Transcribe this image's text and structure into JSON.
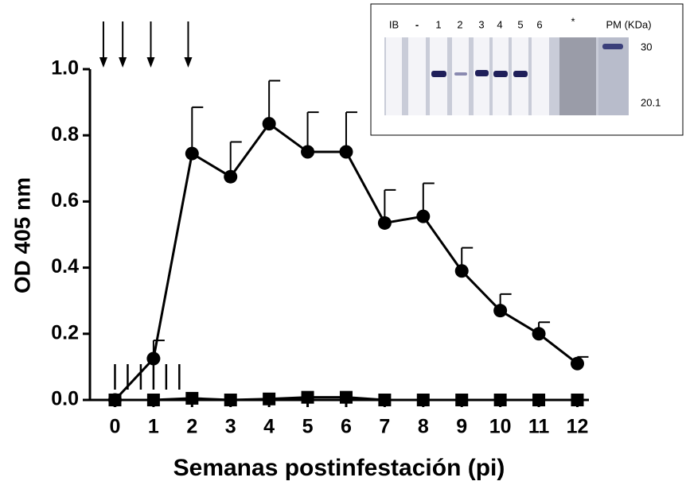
{
  "chart_data": {
    "type": "line",
    "ylabel": "OD 405 nm",
    "xlabel": "Semanas postinfestación (pi)",
    "x": [
      0,
      1,
      2,
      3,
      4,
      5,
      6,
      7,
      8,
      9,
      10,
      11,
      12
    ],
    "xlim": [
      -0.65,
      12.3
    ],
    "xticks": [
      0,
      1,
      2,
      3,
      4,
      5,
      6,
      7,
      8,
      9,
      10,
      11,
      12
    ],
    "ylim": [
      0,
      1.0
    ],
    "yticks": [
      {
        "value": 0,
        "label": "0.0"
      },
      0.2,
      0.4,
      0.6,
      0.8,
      {
        "value": 1.0,
        "label": "1.0"
      }
    ],
    "series": [
      {
        "color": "#000000",
        "marker": "circle",
        "values": [
          0,
          0.125,
          0.745,
          0.675,
          0.835,
          0.75,
          0.75,
          0.535,
          0.555,
          0.39,
          0.27,
          0.2,
          0.11
        ],
        "errors": [
          0,
          0.055,
          0.14,
          0.105,
          0.13,
          0.12,
          0.12,
          0.1,
          0.1,
          0.07,
          0.05,
          0.035,
          0.02
        ]
      },
      {
        "color": "#000000",
        "marker": "square",
        "values": [
          0,
          0,
          0.005,
          0,
          0.003,
          0.008,
          0.008,
          0,
          0,
          0,
          0,
          0,
          0
        ]
      }
    ],
    "arrows_x": [
      -0.3,
      0.2,
      0.93,
      1.9
    ],
    "bars_x": [
      0,
      0.33,
      0.67,
      1,
      1.33,
      1.67
    ]
  },
  "inset": {
    "lanes": [
      "IB",
      "-",
      "1",
      "2",
      "3",
      "4",
      "5",
      "6",
      "*",
      "PM (KDa)"
    ],
    "markers": [
      "30",
      "20.1"
    ]
  }
}
